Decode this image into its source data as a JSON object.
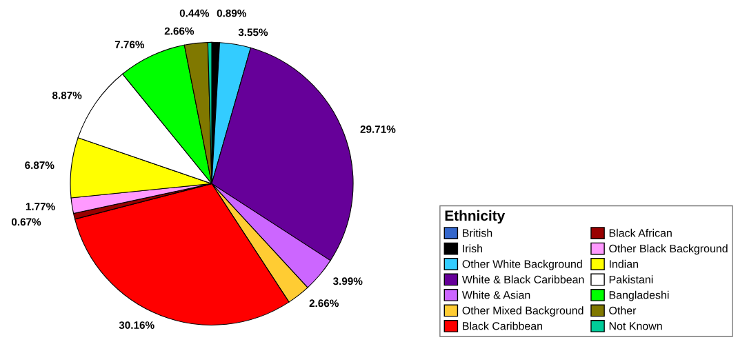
{
  "chart_data": {
    "type": "pie",
    "legend_title": "Ethnicity",
    "legend": "bottom right",
    "categories": [
      "British",
      "Irish",
      "Other White Background",
      "White & Black Caribbean",
      "White & Asian",
      "Other Mixed Background",
      "Black Caribbean",
      "Black African",
      "Other Black Background",
      "Indian",
      "Pakistani",
      "Bangladeshi",
      "Other",
      "Not Known"
    ],
    "values": [
      0,
      0.89,
      3.55,
      29.71,
      3.99,
      2.66,
      30.16,
      0.67,
      1.77,
      6.87,
      8.87,
      7.76,
      2.66,
      0.44
    ],
    "value_labels": [
      null,
      "0.89%",
      "3.55%",
      "29.71%",
      "3.99%",
      "2.66%",
      "30.16%",
      "0.67%",
      "1.77%",
      "6.87%",
      "8.87%",
      "7.76%",
      "2.66%",
      "0.44%"
    ],
    "colors": [
      "#3366cc",
      "#000000",
      "#33ccff",
      "#660099",
      "#cc66ff",
      "#ffcc33",
      "#ff0000",
      "#990000",
      "#ff99ff",
      "#ffff00",
      "#ffffff",
      "#00ff00",
      "#807800",
      "#00cc99"
    ]
  }
}
